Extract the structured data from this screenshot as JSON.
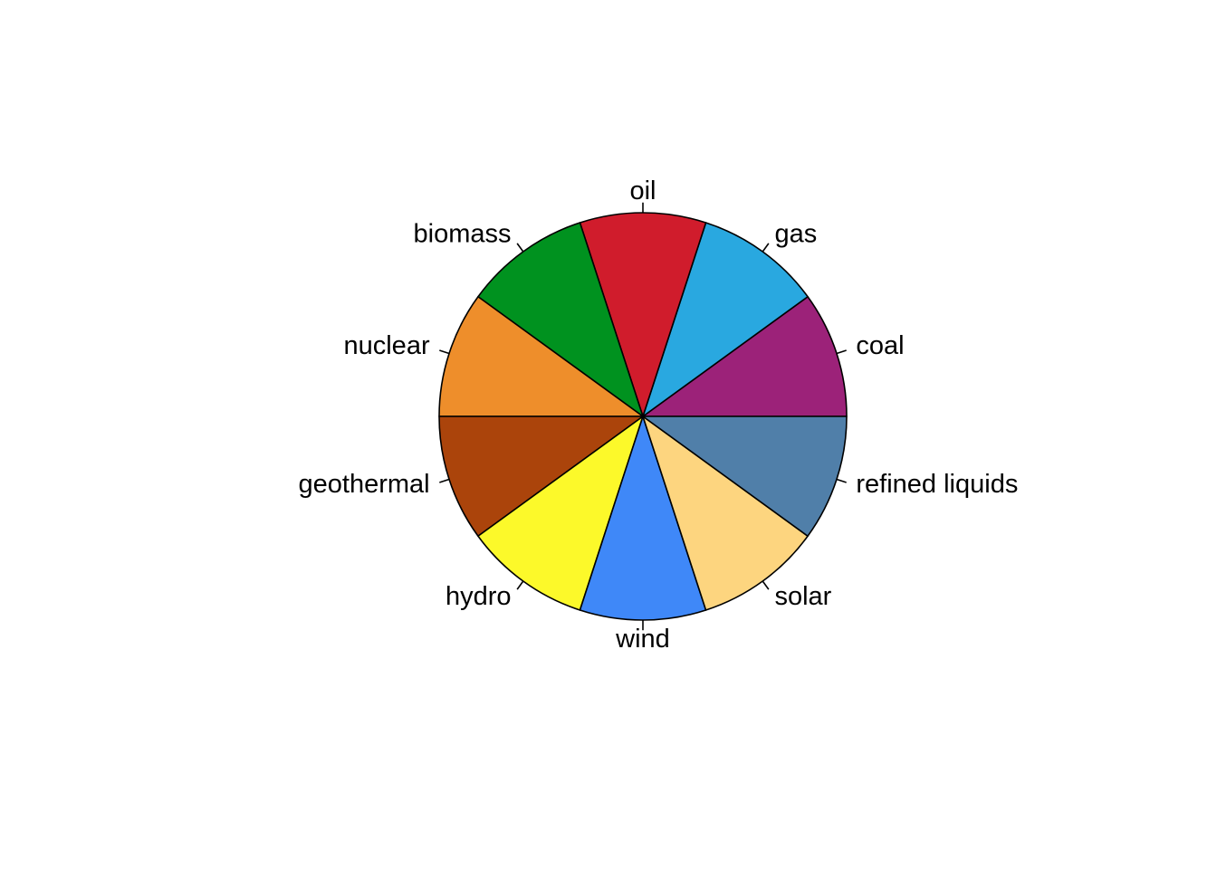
{
  "chart_data": {
    "type": "pie",
    "title": "",
    "start_angle_deg": 0,
    "direction": "counterclockwise",
    "slices": [
      {
        "label": "coal",
        "value": 1,
        "color": "#9C2279"
      },
      {
        "label": "gas",
        "value": 1,
        "color": "#29A8E0"
      },
      {
        "label": "oil",
        "value": 1,
        "color": "#D01C2C"
      },
      {
        "label": "biomass",
        "value": 1,
        "color": "#00921F"
      },
      {
        "label": "nuclear",
        "value": 1,
        "color": "#EE8E2B"
      },
      {
        "label": "geothermal",
        "value": 1,
        "color": "#AB440B"
      },
      {
        "label": "hydro",
        "value": 1,
        "color": "#FCF92A"
      },
      {
        "label": "wind",
        "value": 1,
        "color": "#3F88F8"
      },
      {
        "label": "solar",
        "value": 1,
        "color": "#FDD57F"
      },
      {
        "label": "refined liquids",
        "value": 1,
        "color": "#507FA9"
      }
    ]
  }
}
